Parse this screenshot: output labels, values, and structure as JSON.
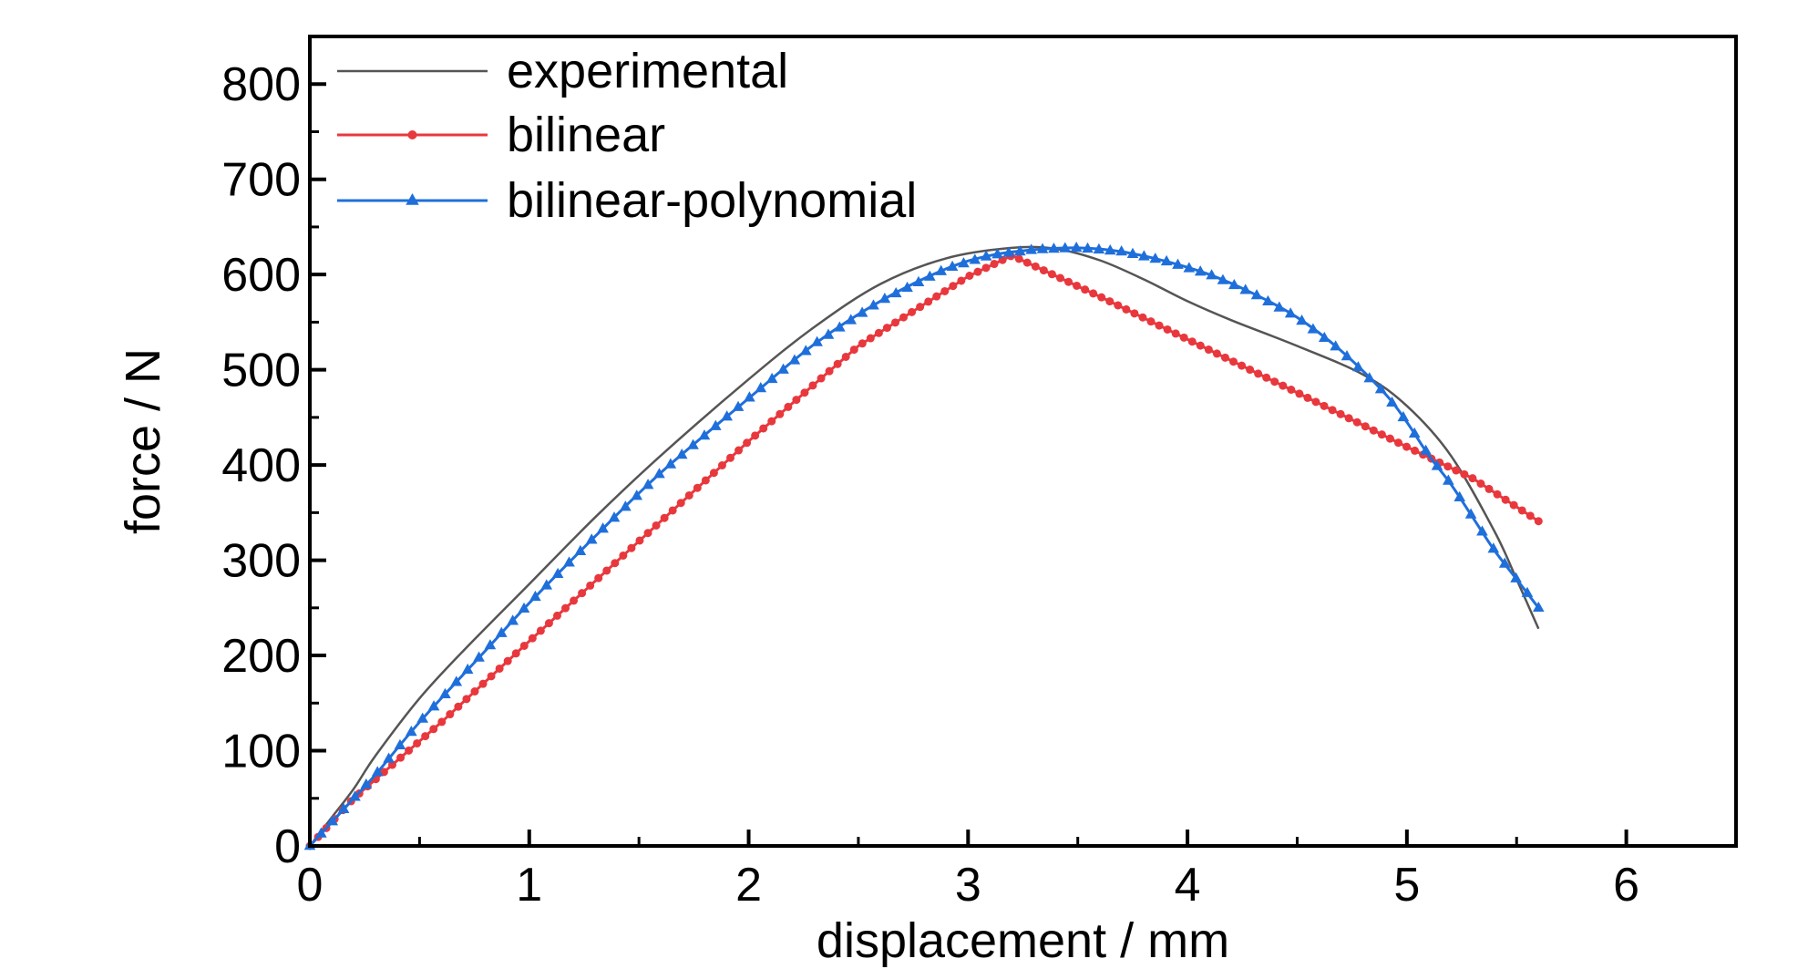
{
  "chart_data": {
    "type": "line",
    "title": "",
    "xlabel": "displacement / mm",
    "ylabel": "force / N",
    "xlim": [
      0,
      6.5
    ],
    "ylim": [
      0,
      850
    ],
    "xticks": [
      0,
      1,
      2,
      3,
      4,
      5,
      6
    ],
    "xtick_labels": [
      "0",
      "1",
      "2",
      "3",
      "4",
      "5",
      "6"
    ],
    "yticks": [
      0,
      100,
      200,
      300,
      400,
      500,
      600,
      700,
      800
    ],
    "ytick_labels": [
      "0",
      "100",
      "200",
      "300",
      "400",
      "500",
      "600",
      "700",
      "800"
    ],
    "grid": false,
    "legend_position": "top-left",
    "series": [
      {
        "name": "experimental",
        "color": "#555555",
        "marker": "none",
        "x": [
          0,
          0.1,
          0.2,
          0.3,
          0.5,
          0.7,
          1.0,
          1.3,
          1.6,
          2.0,
          2.3,
          2.6,
          2.9,
          3.2,
          3.4,
          3.6,
          3.8,
          4.0,
          4.2,
          4.5,
          4.8,
          5.0,
          5.2,
          5.4,
          5.5,
          5.6
        ],
        "y": [
          0,
          30,
          60,
          95,
          155,
          205,
          275,
          345,
          410,
          490,
          545,
          590,
          617,
          628,
          627,
          615,
          595,
          572,
          552,
          525,
          495,
          462,
          410,
          330,
          280,
          228
        ]
      },
      {
        "name": "bilinear",
        "color": "#e8383d",
        "marker": "circle",
        "x": [
          0,
          0.1,
          0.2,
          0.3,
          0.6,
          1.0,
          1.5,
          2.0,
          2.5,
          3.0,
          3.2,
          3.6,
          4.0,
          4.5,
          5.0,
          5.3,
          5.6
        ],
        "y": [
          0,
          25,
          50,
          70,
          130,
          215,
          320,
          425,
          525,
          598,
          620,
          577,
          532,
          476,
          419,
          386,
          341
        ]
      },
      {
        "name": "bilinear-polynomial",
        "color": "#1f6fdb",
        "marker": "triangle",
        "x": [
          0,
          0.1,
          0.2,
          0.3,
          0.5,
          0.8,
          1.0,
          1.3,
          1.6,
          2.0,
          2.3,
          2.6,
          2.9,
          3.1,
          3.3,
          3.5,
          3.7,
          3.9,
          4.1,
          4.3,
          4.5,
          4.7,
          4.9,
          5.0,
          5.1,
          5.2,
          5.3,
          5.4,
          5.5,
          5.6
        ],
        "y": [
          0,
          25,
          50,
          75,
          130,
          205,
          255,
          325,
          392,
          470,
          527,
          572,
          606,
          620,
          626,
          628,
          624,
          614,
          600,
          580,
          555,
          520,
          475,
          445,
          410,
          380,
          345,
          310,
          280,
          250
        ]
      }
    ]
  }
}
